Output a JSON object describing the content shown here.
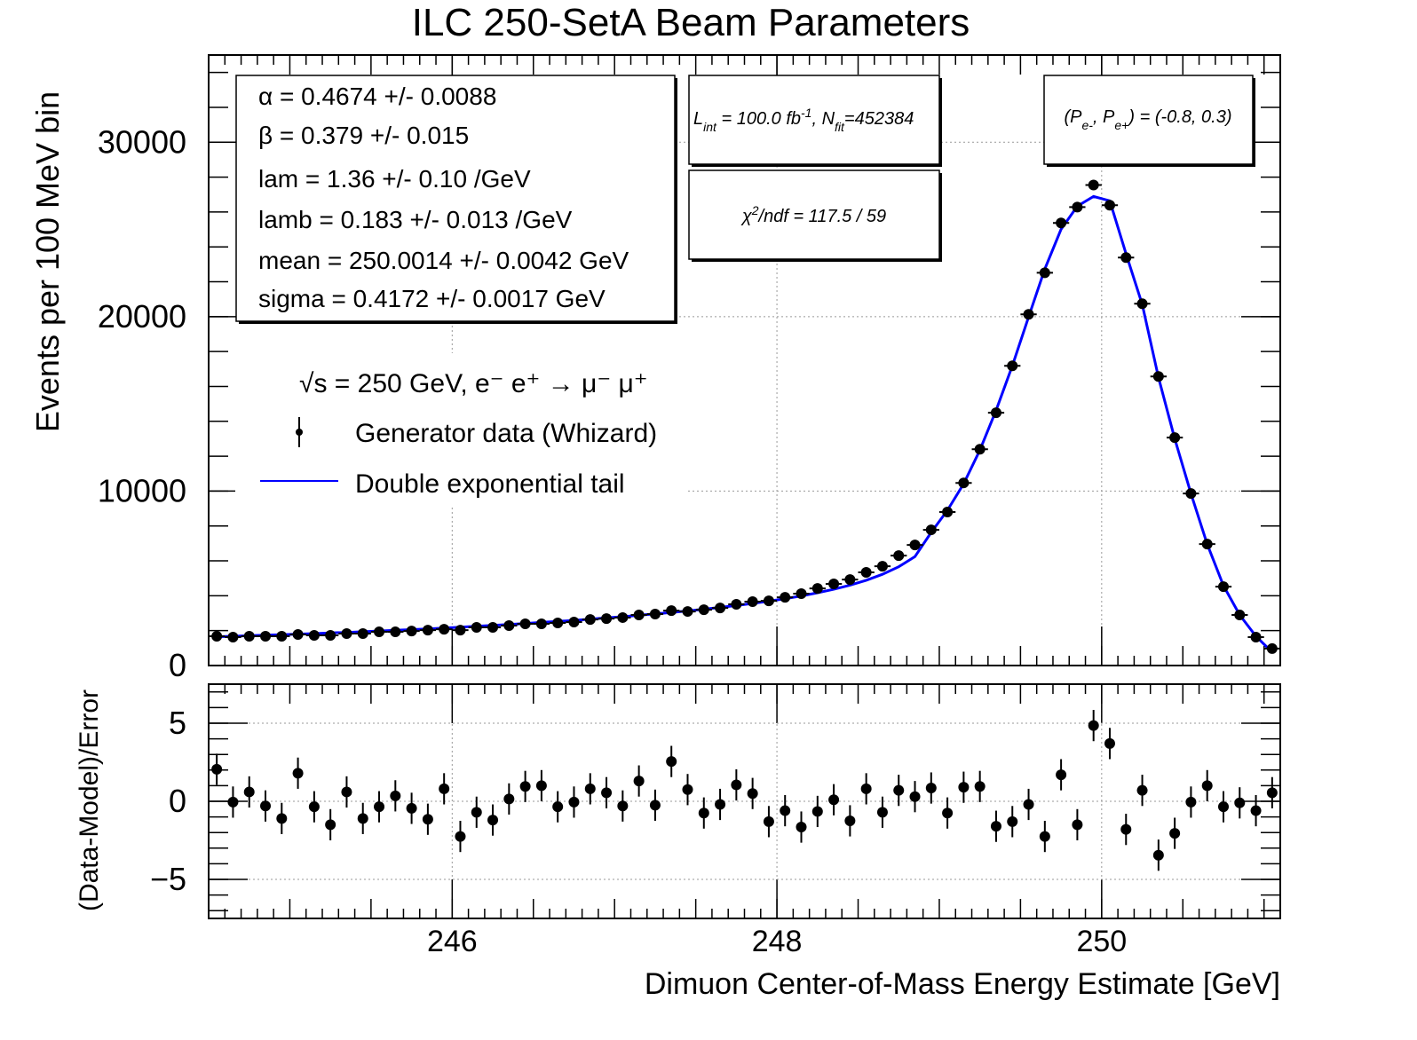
{
  "chart_data": [
    {
      "type": "scatter",
      "title": "ILC 250-SetA Beam Parameters",
      "ylabel": "Events per 100 MeV bin",
      "x": [
        244.55,
        244.65,
        244.75,
        244.85,
        244.95,
        245.05,
        245.15,
        245.25,
        245.35,
        245.45,
        245.55,
        245.65,
        245.75,
        245.85,
        245.95,
        246.05,
        246.15,
        246.25,
        246.35,
        246.45,
        246.55,
        246.65,
        246.75,
        246.85,
        246.95,
        247.05,
        247.15,
        247.25,
        247.35,
        247.45,
        247.55,
        247.65,
        247.75,
        247.85,
        247.95,
        248.05,
        248.15,
        248.25,
        248.35,
        248.45,
        248.55,
        248.65,
        248.75,
        248.85,
        248.95,
        249.05,
        249.15,
        249.25,
        249.35,
        249.45,
        249.55,
        249.65,
        249.75,
        249.85,
        249.95,
        250.05,
        250.15,
        250.25,
        250.35,
        250.45,
        250.55,
        250.65,
        250.75,
        250.85,
        250.95,
        251.05
      ],
      "xerr": 0.05,
      "xlim": [
        244.5,
        251.1
      ],
      "xticks": [
        246,
        248,
        250
      ],
      "ylim": [
        0,
        35000
      ],
      "yticks": [
        0,
        10000,
        20000,
        30000
      ],
      "grid": true,
      "series": [
        {
          "name": "Generator data (Whizard)",
          "color": "#000000",
          "values": [
            1680,
            1630,
            1680,
            1680,
            1680,
            1780,
            1730,
            1730,
            1830,
            1830,
            1930,
            1930,
            1980,
            2030,
            2080,
            2030,
            2190,
            2190,
            2290,
            2390,
            2390,
            2440,
            2490,
            2640,
            2690,
            2750,
            2900,
            2950,
            3150,
            3100,
            3200,
            3300,
            3510,
            3660,
            3710,
            3910,
            4120,
            4420,
            4680,
            4930,
            5340,
            5690,
            6300,
            6910,
            7780,
            8800,
            10470,
            12400,
            14490,
            17180,
            20130,
            22520,
            25370,
            26280,
            27550,
            26390,
            23390,
            20740,
            16570,
            13070,
            9860,
            6960,
            4520,
            2900,
            1630,
            970
          ]
        },
        {
          "name": "Double exponential tail",
          "color": "#0000ff",
          "type": "line",
          "values": [
            1650,
            1680,
            1710,
            1740,
            1770,
            1800,
            1830,
            1870,
            1900,
            1940,
            1980,
            2020,
            2060,
            2100,
            2150,
            2200,
            2250,
            2300,
            2350,
            2410,
            2470,
            2530,
            2590,
            2660,
            2730,
            2800,
            2880,
            2960,
            3040,
            3130,
            3230,
            3330,
            3440,
            3560,
            3690,
            3830,
            3990,
            4170,
            4370,
            4610,
            4890,
            5230,
            5660,
            6240,
            7630,
            8900,
            10420,
            12350,
            14640,
            17180,
            19980,
            22730,
            25010,
            26330,
            26890,
            26640,
            23600,
            20690,
            16520,
            13010,
            9860,
            6960,
            4580,
            2900,
            1680,
            760
          ]
        }
      ],
      "legend_title": "√s = 250 GeV, e⁻ e⁺ → μ⁻ μ⁺",
      "stats": [
        "α =  0.4674 +/- 0.0088",
        "β =  0.379 +/- 0.015",
        "lam =  1.36 +/- 0.10 /GeV",
        "lamb =  0.183 +/- 0.013 /GeV",
        "mean =  250.0014 +/- 0.0042 GeV",
        "sigma =  0.4172 +/- 0.0017 GeV"
      ],
      "lumi": [
        "L",
        "int",
        " = 100.0 fb",
        "-1",
        ", N",
        "fit",
        "=452384"
      ],
      "chi2": [
        "χ",
        "2",
        "/ndf =  117.5 /  59"
      ],
      "polarization": [
        "(P",
        "e-",
        ", P",
        "e+",
        ") = (-0.8, 0.3)"
      ]
    },
    {
      "type": "scatter",
      "ylabel": "(Data-Model)/Error",
      "xlabel": "Dimuon Center-of-Mass Energy Estimate [GeV]",
      "xlim": [
        244.5,
        251.1
      ],
      "xticks": [
        246,
        248,
        250
      ],
      "ylim": [
        -7.5,
        7.5
      ],
      "yticks": [
        {
          "value": -5,
          "label": "−5"
        },
        0,
        5
      ],
      "grid": true,
      "color": "#000000",
      "yerr": 1,
      "values": [
        2.05,
        -0.05,
        0.6,
        -0.3,
        -1.1,
        1.8,
        -0.35,
        -1.5,
        0.6,
        -1.1,
        -0.35,
        0.35,
        -0.45,
        -1.15,
        0.8,
        -2.25,
        -0.7,
        -1.2,
        0.15,
        0.95,
        1.0,
        -0.35,
        -0.05,
        0.8,
        0.55,
        -0.3,
        1.3,
        -0.25,
        2.55,
        0.75,
        -0.75,
        -0.2,
        1.05,
        0.5,
        -1.3,
        -0.6,
        -1.65,
        -0.65,
        0.1,
        -1.25,
        0.8,
        -0.7,
        0.7,
        0.3,
        0.85,
        -0.75,
        0.9,
        0.95,
        -1.6,
        -1.3,
        -0.2,
        -2.25,
        1.7,
        -1.5,
        4.85,
        3.7,
        -1.8,
        0.7,
        -3.45,
        -2.05,
        -0.05,
        1.0,
        -0.35,
        -0.1,
        -0.6,
        0.55
      ]
    }
  ]
}
